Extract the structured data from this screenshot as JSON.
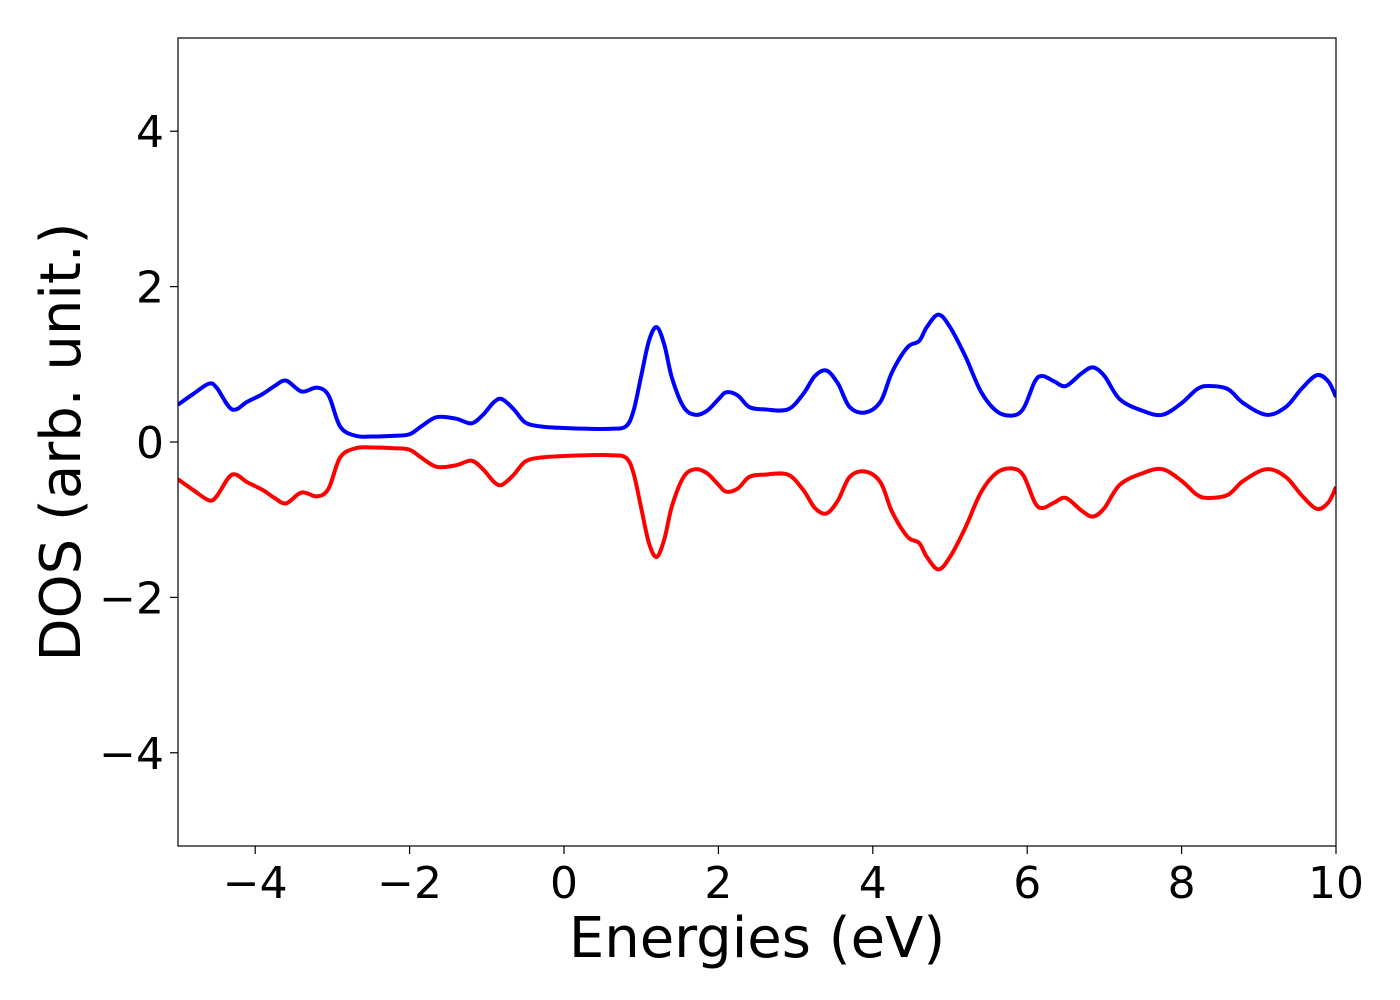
{
  "chart_data": {
    "type": "line",
    "title": "",
    "xlabel": "Energies (eV)",
    "ylabel": "DOS (arb. unit.)",
    "xlim": [
      -5,
      10
    ],
    "ylim": [
      -5.2,
      5.2
    ],
    "xticks": [
      -4,
      -2,
      0,
      2,
      4,
      6,
      8,
      10
    ],
    "yticks": [
      -4,
      -2,
      0,
      2,
      4
    ],
    "xtick_labels": [
      "−4",
      "−2",
      "0",
      "2",
      "4",
      "6",
      "8",
      "10"
    ],
    "ytick_labels": [
      "−4",
      "−2",
      "0",
      "2",
      "4"
    ],
    "grid": false,
    "legend": false,
    "series": [
      {
        "color": "#0000ff",
        "x": [
          -5.0,
          -4.8,
          -4.6,
          -4.5,
          -4.3,
          -4.1,
          -3.9,
          -3.75,
          -3.6,
          -3.4,
          -3.2,
          -3.05,
          -2.9,
          -2.7,
          -2.5,
          -2.2,
          -2.0,
          -1.85,
          -1.65,
          -1.4,
          -1.2,
          -1.05,
          -0.9,
          -0.8,
          -0.65,
          -0.5,
          -0.3,
          0.0,
          0.3,
          0.6,
          0.8,
          0.9,
          1.0,
          1.1,
          1.2,
          1.3,
          1.4,
          1.55,
          1.7,
          1.85,
          2.0,
          2.1,
          2.25,
          2.4,
          2.6,
          2.9,
          3.1,
          3.25,
          3.4,
          3.55,
          3.7,
          3.9,
          4.1,
          4.25,
          4.45,
          4.6,
          4.7,
          4.85,
          5.0,
          5.2,
          5.4,
          5.6,
          5.8,
          5.95,
          6.1,
          6.2,
          6.35,
          6.5,
          6.7,
          6.85,
          7.0,
          7.2,
          7.5,
          7.75,
          8.0,
          8.2,
          8.35,
          8.6,
          8.8,
          9.1,
          9.35,
          9.55,
          9.75,
          9.9,
          10.0
        ],
        "y": [
          0.48,
          0.62,
          0.75,
          0.7,
          0.42,
          0.52,
          0.62,
          0.72,
          0.79,
          0.65,
          0.7,
          0.6,
          0.2,
          0.08,
          0.07,
          0.08,
          0.1,
          0.2,
          0.32,
          0.3,
          0.24,
          0.35,
          0.52,
          0.55,
          0.42,
          0.25,
          0.2,
          0.18,
          0.17,
          0.17,
          0.2,
          0.4,
          0.85,
          1.3,
          1.48,
          1.25,
          0.82,
          0.45,
          0.35,
          0.4,
          0.55,
          0.64,
          0.6,
          0.45,
          0.42,
          0.42,
          0.62,
          0.85,
          0.92,
          0.75,
          0.45,
          0.38,
          0.52,
          0.9,
          1.22,
          1.3,
          1.48,
          1.64,
          1.48,
          1.1,
          0.65,
          0.4,
          0.34,
          0.43,
          0.78,
          0.85,
          0.78,
          0.72,
          0.88,
          0.96,
          0.85,
          0.55,
          0.4,
          0.35,
          0.5,
          0.68,
          0.72,
          0.68,
          0.5,
          0.35,
          0.45,
          0.68,
          0.86,
          0.78,
          0.58
        ]
      },
      {
        "color": "#ff0000",
        "x": [
          -5.0,
          -4.8,
          -4.6,
          -4.5,
          -4.3,
          -4.1,
          -3.9,
          -3.75,
          -3.6,
          -3.4,
          -3.2,
          -3.05,
          -2.9,
          -2.7,
          -2.5,
          -2.2,
          -2.0,
          -1.85,
          -1.65,
          -1.4,
          -1.2,
          -1.05,
          -0.9,
          -0.8,
          -0.65,
          -0.5,
          -0.3,
          0.0,
          0.3,
          0.6,
          0.8,
          0.9,
          1.0,
          1.1,
          1.2,
          1.3,
          1.4,
          1.55,
          1.7,
          1.85,
          2.0,
          2.1,
          2.25,
          2.4,
          2.6,
          2.9,
          3.1,
          3.25,
          3.4,
          3.55,
          3.7,
          3.9,
          4.1,
          4.25,
          4.45,
          4.6,
          4.7,
          4.85,
          5.0,
          5.2,
          5.4,
          5.6,
          5.8,
          5.95,
          6.1,
          6.2,
          6.35,
          6.5,
          6.7,
          6.85,
          7.0,
          7.2,
          7.5,
          7.75,
          8.0,
          8.2,
          8.35,
          8.6,
          8.8,
          9.1,
          9.35,
          9.55,
          9.75,
          9.9,
          10.0
        ],
        "y": [
          -0.48,
          -0.62,
          -0.75,
          -0.7,
          -0.42,
          -0.52,
          -0.62,
          -0.72,
          -0.79,
          -0.65,
          -0.7,
          -0.6,
          -0.2,
          -0.08,
          -0.07,
          -0.08,
          -0.1,
          -0.2,
          -0.32,
          -0.3,
          -0.24,
          -0.35,
          -0.52,
          -0.55,
          -0.42,
          -0.25,
          -0.2,
          -0.18,
          -0.17,
          -0.17,
          -0.2,
          -0.4,
          -0.85,
          -1.3,
          -1.48,
          -1.25,
          -0.82,
          -0.45,
          -0.35,
          -0.4,
          -0.55,
          -0.64,
          -0.6,
          -0.45,
          -0.42,
          -0.42,
          -0.62,
          -0.85,
          -0.92,
          -0.75,
          -0.45,
          -0.38,
          -0.52,
          -0.9,
          -1.22,
          -1.3,
          -1.48,
          -1.64,
          -1.48,
          -1.1,
          -0.65,
          -0.4,
          -0.34,
          -0.43,
          -0.78,
          -0.85,
          -0.78,
          -0.72,
          -0.88,
          -0.96,
          -0.85,
          -0.55,
          -0.4,
          -0.35,
          -0.5,
          -0.68,
          -0.72,
          -0.68,
          -0.5,
          -0.35,
          -0.45,
          -0.68,
          -0.86,
          -0.78,
          -0.58
        ]
      }
    ]
  }
}
